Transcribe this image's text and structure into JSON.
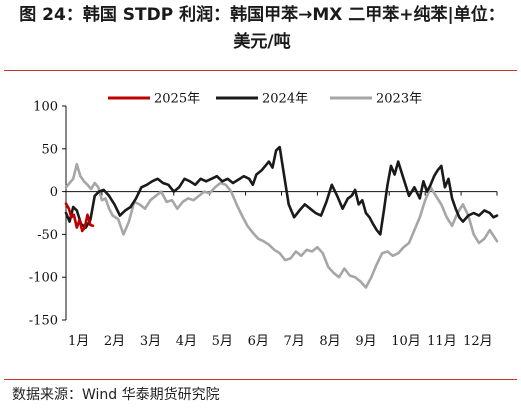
{
  "header": {
    "title": "图 24：韩国 STDP 利润：韩国甲苯→MX 二甲苯+纯苯|单位：美元/吨"
  },
  "footer": {
    "source": "数据来源：Wind 华泰期货研究院"
  },
  "colors": {
    "accent_rule": "#c0392b",
    "series_2025": "#c00000",
    "series_2024": "#1a1a1a",
    "series_2023": "#a6a6a6"
  },
  "chart_data": {
    "type": "line",
    "title": "",
    "xlabel": "",
    "ylabel": "",
    "ylim": [
      -150,
      100
    ],
    "yticks": [
      100,
      50,
      0,
      -50,
      -100,
      -150
    ],
    "xlim": [
      0,
      12
    ],
    "month_labels": [
      "1月",
      "2月",
      "3月",
      "4月",
      "5月",
      "6月",
      "7月",
      "8月",
      "9月",
      "10月",
      "11月",
      "12月"
    ],
    "grid": false,
    "legend_position": "top",
    "series": [
      {
        "name": "2025年",
        "color": "#c00000",
        "x": [
          0.0,
          0.08,
          0.15,
          0.22,
          0.3,
          0.38,
          0.45,
          0.52,
          0.6,
          0.68,
          0.75
        ],
        "y": [
          -14,
          -20,
          -30,
          -27,
          -42,
          -33,
          -46,
          -42,
          -27,
          -39,
          -40
        ]
      },
      {
        "name": "2024年",
        "color": "#1a1a1a",
        "x": [
          0.0,
          0.1,
          0.2,
          0.3,
          0.42,
          0.55,
          0.68,
          0.8,
          0.92,
          1.05,
          1.2,
          1.35,
          1.5,
          1.65,
          1.8,
          1.95,
          2.1,
          2.25,
          2.4,
          2.55,
          2.7,
          2.85,
          3.0,
          3.15,
          3.3,
          3.45,
          3.6,
          3.75,
          3.9,
          4.05,
          4.2,
          4.35,
          4.5,
          4.65,
          4.8,
          4.95,
          5.1,
          5.2,
          5.3,
          5.45,
          5.55,
          5.65,
          5.75,
          5.85,
          5.95,
          6.05,
          6.2,
          6.35,
          6.5,
          6.65,
          6.8,
          6.95,
          7.1,
          7.25,
          7.4,
          7.55,
          7.7,
          7.85,
          7.95,
          8.05,
          8.15,
          8.25,
          8.35,
          8.45,
          8.55,
          8.65,
          8.75,
          8.85,
          8.95,
          9.05,
          9.15,
          9.25,
          9.4,
          9.55,
          9.7,
          9.85,
          9.95,
          10.05,
          10.15,
          10.25,
          10.35,
          10.45,
          10.55,
          10.65,
          10.75,
          10.85,
          10.95,
          11.05,
          11.2,
          11.35,
          11.5,
          11.65,
          11.8,
          11.9,
          12.0
        ],
        "y": [
          -25,
          -35,
          -18,
          -22,
          -38,
          -42,
          -33,
          -5,
          0,
          2,
          -5,
          -15,
          -28,
          -22,
          -18,
          -8,
          5,
          8,
          12,
          15,
          10,
          8,
          0,
          5,
          15,
          12,
          8,
          15,
          12,
          15,
          18,
          12,
          15,
          10,
          14,
          18,
          15,
          8,
          20,
          25,
          30,
          35,
          28,
          48,
          52,
          25,
          -15,
          -30,
          -22,
          -15,
          -20,
          -25,
          -28,
          -12,
          8,
          -5,
          -20,
          -8,
          -5,
          2,
          -15,
          -10,
          -25,
          -30,
          -38,
          -45,
          -50,
          -22,
          8,
          30,
          20,
          35,
          15,
          -5,
          5,
          -8,
          12,
          0,
          8,
          18,
          25,
          30,
          5,
          15,
          -8,
          -20,
          -30,
          -35,
          -28,
          -25,
          -28,
          -22,
          -25,
          -30,
          -28
        ]
      },
      {
        "name": "2023年",
        "color": "#a6a6a6",
        "x": [
          0.0,
          0.1,
          0.2,
          0.3,
          0.4,
          0.5,
          0.6,
          0.7,
          0.8,
          0.9,
          1.0,
          1.1,
          1.2,
          1.3,
          1.45,
          1.6,
          1.75,
          1.9,
          2.05,
          2.2,
          2.35,
          2.5,
          2.65,
          2.8,
          2.95,
          3.1,
          3.25,
          3.4,
          3.55,
          3.7,
          3.85,
          4.0,
          4.15,
          4.3,
          4.45,
          4.6,
          4.75,
          4.9,
          5.05,
          5.2,
          5.35,
          5.5,
          5.65,
          5.8,
          5.95,
          6.1,
          6.25,
          6.4,
          6.55,
          6.7,
          6.85,
          7.0,
          7.15,
          7.3,
          7.45,
          7.6,
          7.75,
          7.9,
          8.05,
          8.2,
          8.35,
          8.5,
          8.65,
          8.8,
          8.95,
          9.1,
          9.25,
          9.4,
          9.55,
          9.7,
          9.85,
          10.0,
          10.15,
          10.3,
          10.45,
          10.6,
          10.75,
          10.9,
          11.05,
          11.2,
          11.35,
          11.5,
          11.65,
          11.8,
          12.0
        ],
        "y": [
          5,
          10,
          15,
          32,
          18,
          12,
          8,
          3,
          10,
          5,
          -10,
          -8,
          -20,
          -28,
          -32,
          -50,
          -35,
          -12,
          -15,
          -20,
          -10,
          -5,
          0,
          -12,
          -10,
          -20,
          -12,
          -8,
          -10,
          -5,
          0,
          -2,
          5,
          10,
          8,
          0,
          -15,
          -28,
          -40,
          -48,
          -55,
          -58,
          -62,
          -68,
          -72,
          -80,
          -78,
          -70,
          -75,
          -68,
          -70,
          -65,
          -72,
          -88,
          -95,
          -100,
          -90,
          -98,
          -100,
          -105,
          -112,
          -100,
          -85,
          -72,
          -70,
          -75,
          -72,
          -65,
          -60,
          -45,
          -30,
          -10,
          5,
          -5,
          -15,
          -30,
          -40,
          -25,
          -15,
          -28,
          -50,
          -60,
          -55,
          -45,
          -58
        ]
      }
    ]
  }
}
